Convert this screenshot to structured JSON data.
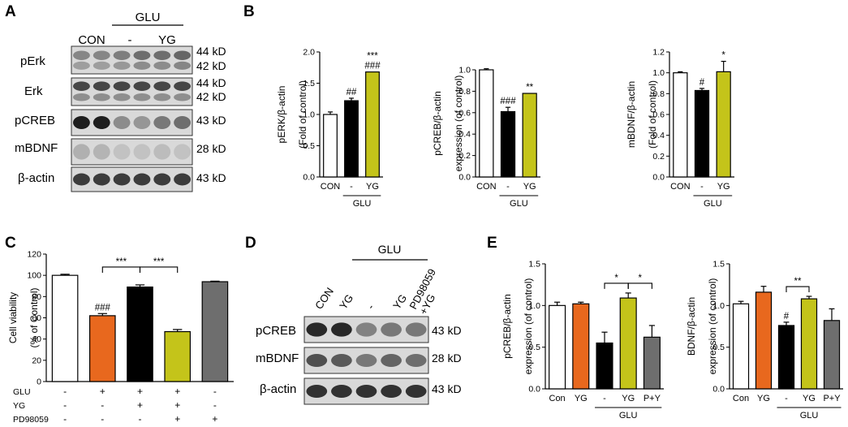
{
  "colors": {
    "white": "#ffffff",
    "black": "#000000",
    "yellow": "#c4c41a",
    "orange": "#e8681e",
    "gray": "#6e6e6e"
  },
  "panelA": {
    "letter": "A",
    "group_label": "GLU",
    "lanes": [
      "CON",
      "-",
      "YG"
    ],
    "rows": [
      {
        "name": "pErk",
        "kd": [
          "44 kD",
          "42 kD"
        ]
      },
      {
        "name": "Erk",
        "kd": [
          "44 kD",
          "42 kD"
        ]
      },
      {
        "name": "pCREB",
        "kd": [
          "43 kD"
        ]
      },
      {
        "name": "mBDNF",
        "kd": [
          "28 kD"
        ]
      },
      {
        "name": "β-actin",
        "kd": [
          "43 kD"
        ]
      }
    ]
  },
  "panelB": {
    "letter": "B"
  },
  "panelC": {
    "letter": "C",
    "rowlabels": [
      "GLU",
      "YG",
      "PD98059"
    ],
    "signs": [
      [
        "-",
        "+",
        "+",
        "+",
        "-"
      ],
      [
        "-",
        "-",
        "+",
        "+",
        "-"
      ],
      [
        "-",
        "-",
        "-",
        "+",
        "+"
      ]
    ]
  },
  "panelD": {
    "letter": "D",
    "group_label": "GLU",
    "lanes": [
      "CON",
      "YG",
      "-",
      "YG",
      "PD98059\n+YG"
    ],
    "rows": [
      {
        "name": "pCREB",
        "kd": "43 kD"
      },
      {
        "name": "mBDNF",
        "kd": "28 kD"
      },
      {
        "name": "β-actin",
        "kd": "43 kD"
      }
    ]
  },
  "panelE": {
    "letter": "E"
  },
  "chart_data": [
    {
      "id": "B1",
      "type": "bar",
      "ylabel": "pERK/β-actin\n(Fold of control)",
      "ylim": [
        0,
        2.0
      ],
      "ticks": [
        0.0,
        0.5,
        1.0,
        1.5,
        2.0
      ],
      "tick_labels": [
        "0.0",
        "0.5",
        "1.0",
        "1.5",
        "2.0"
      ],
      "categories": [
        "CON",
        "-",
        "YG"
      ],
      "values": [
        1.0,
        1.22,
        1.68
      ],
      "errors": [
        0.04,
        0.04,
        0.0
      ],
      "fills": [
        "#ffffff",
        "#000000",
        "#c4c41a"
      ],
      "annotations": [
        [],
        [
          "##"
        ],
        [
          "***",
          "###"
        ]
      ],
      "group_label": "GLU",
      "group_span": [
        1,
        2
      ]
    },
    {
      "id": "B2",
      "type": "bar",
      "ylabel": "pCREB/β-actin\nexpression (of control)",
      "ylim": [
        0,
        1.0
      ],
      "ticks": [
        0.0,
        0.2,
        0.4,
        0.6,
        0.8,
        1.0
      ],
      "tick_labels": [
        "0.0",
        "0.2",
        "0.4",
        "0.6",
        "0.8",
        "1.0"
      ],
      "categories": [
        "CON",
        "-",
        "YG"
      ],
      "values": [
        1.0,
        0.61,
        0.78
      ],
      "errors": [
        0.01,
        0.04,
        0.0
      ],
      "fills": [
        "#ffffff",
        "#000000",
        "#c4c41a"
      ],
      "annotations": [
        [],
        [
          "###"
        ],
        [
          "**"
        ]
      ],
      "group_label": "GLU",
      "group_span": [
        1,
        2
      ]
    },
    {
      "id": "B3",
      "type": "bar",
      "ylabel": "mBDNF/β-actin\n(Fold of control)",
      "ylim": [
        0,
        1.2
      ],
      "ticks": [
        0.0,
        0.2,
        0.4,
        0.6,
        0.8,
        1.0,
        1.2
      ],
      "tick_labels": [
        "0.0",
        "0.2",
        "0.4",
        "0.6",
        "0.8",
        "1.0",
        "1.2"
      ],
      "categories": [
        "CON",
        "-",
        "YG"
      ],
      "values": [
        1.0,
        0.83,
        1.01
      ],
      "errors": [
        0.01,
        0.02,
        0.1
      ],
      "fills": [
        "#ffffff",
        "#000000",
        "#c4c41a"
      ],
      "annotations": [
        [],
        [
          "#"
        ],
        [
          "*"
        ]
      ],
      "group_label": "GLU",
      "group_span": [
        1,
        2
      ]
    },
    {
      "id": "C",
      "type": "bar",
      "ylabel": "Cell viability\n(% of Control)",
      "ylim": [
        0,
        120
      ],
      "ticks": [
        0,
        20,
        40,
        60,
        80,
        100,
        120
      ],
      "tick_labels": [
        "0",
        "20",
        "40",
        "60",
        "80",
        "100",
        "120"
      ],
      "categories": [
        "",
        "",
        "",
        "",
        ""
      ],
      "values": [
        100,
        62,
        89,
        47,
        94
      ],
      "errors": [
        1,
        2,
        2,
        2,
        0.5
      ],
      "fills": [
        "#ffffff",
        "#e8681e",
        "#000000",
        "#c4c41a",
        "#6e6e6e"
      ],
      "annotations": [
        [],
        [
          "###"
        ],
        [],
        [],
        []
      ],
      "brackets": [
        {
          "from": 1,
          "to": 2,
          "label": "***"
        },
        {
          "from": 2,
          "to": 3,
          "label": "***"
        }
      ]
    },
    {
      "id": "E1",
      "type": "bar",
      "ylabel": "pCREB/β-actin\nexpression (of control)",
      "ylim": [
        0,
        1.5
      ],
      "ticks": [
        0.0,
        0.5,
        1.0,
        1.5
      ],
      "tick_labels": [
        "0.0",
        "0.5",
        "1.0",
        "1.5"
      ],
      "categories": [
        "Con",
        "YG",
        "-",
        "YG",
        "P+Y"
      ],
      "values": [
        1.0,
        1.02,
        0.55,
        1.09,
        0.62
      ],
      "errors": [
        0.04,
        0.02,
        0.13,
        0.06,
        0.14
      ],
      "fills": [
        "#ffffff",
        "#e8681e",
        "#000000",
        "#c4c41a",
        "#6e6e6e"
      ],
      "annotations": [
        [],
        [],
        [],
        [],
        []
      ],
      "brackets": [
        {
          "from": 2,
          "to": 3,
          "label": "*"
        },
        {
          "from": 3,
          "to": 4,
          "label": "*"
        }
      ],
      "group_label": "GLU",
      "group_span": [
        2,
        4
      ]
    },
    {
      "id": "E2",
      "type": "bar",
      "ylabel": "BDNF/β-actin\nexpression (of control)",
      "ylim": [
        0,
        1.5
      ],
      "ticks": [
        0.0,
        0.5,
        1.0,
        1.5
      ],
      "tick_labels": [
        "0.0",
        "0.5",
        "1.0",
        "1.5"
      ],
      "categories": [
        "Con",
        "YG",
        "-",
        "YG",
        "P+Y"
      ],
      "values": [
        1.02,
        1.16,
        0.76,
        1.08,
        0.82
      ],
      "errors": [
        0.03,
        0.07,
        0.04,
        0.03,
        0.14
      ],
      "fills": [
        "#ffffff",
        "#e8681e",
        "#000000",
        "#c4c41a",
        "#6e6e6e"
      ],
      "annotations": [
        [],
        [],
        [
          "#"
        ],
        [],
        []
      ],
      "brackets": [
        {
          "from": 2,
          "to": 3,
          "label": "**"
        }
      ],
      "group_label": "GLU",
      "group_span": [
        2,
        4
      ]
    }
  ]
}
